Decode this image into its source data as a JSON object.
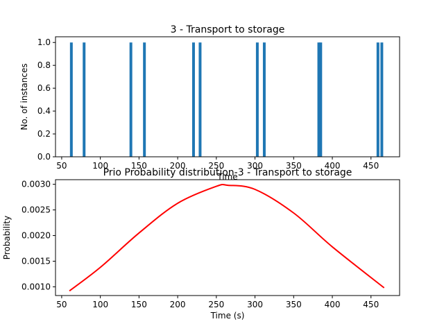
{
  "colors": {
    "bar": "#1f77b4",
    "line": "#ff0000",
    "axis": "#000000",
    "background": "#ffffff"
  },
  "chart_data": [
    {
      "type": "bar",
      "title": "3 - Transport to storage",
      "xlabel": "Time",
      "ylabel": "No. of instances",
      "xlim": [
        42,
        487
      ],
      "ylim": [
        0,
        1.05
      ],
      "x_ticks": [
        50,
        100,
        150,
        200,
        250,
        300,
        350,
        400,
        450
      ],
      "x_tick_labels": [
        "50",
        "100",
        "150",
        "200",
        "250",
        "300",
        "350",
        "400",
        "450"
      ],
      "y_ticks": [
        0,
        0.2,
        0.4,
        0.6,
        0.8,
        1.0
      ],
      "y_tick_labels": [
        "0.0",
        "0.2",
        "0.4",
        "0.6",
        "0.8",
        "1.0"
      ],
      "grid": false,
      "series": [
        {
          "x": [
            62.5,
            79,
            139.5,
            157,
            220.5,
            229,
            303,
            312,
            382.5,
            385,
            459,
            464
          ],
          "values": [
            1,
            1,
            1,
            1,
            1,
            1,
            1,
            1,
            1,
            1,
            1,
            1
          ]
        }
      ]
    },
    {
      "type": "line",
      "title": "Prio Probability distribution-3 - Transport to storage",
      "xlabel": "Time (s)",
      "ylabel": "Probability",
      "xlim": [
        42,
        487
      ],
      "ylim": [
        0.00083,
        0.00309
      ],
      "x_ticks": [
        50,
        100,
        150,
        200,
        250,
        300,
        350,
        400,
        450
      ],
      "x_tick_labels": [
        "50",
        "100",
        "150",
        "200",
        "250",
        "300",
        "350",
        "400",
        "450"
      ],
      "y_ticks": [
        0.001,
        0.0015,
        0.002,
        0.0025,
        0.003
      ],
      "y_tick_labels": [
        "0.0010",
        "0.0015",
        "0.0020",
        "0.0025",
        "0.0030"
      ],
      "grid": false,
      "series": [
        {
          "x": [
            60,
            100,
            150,
            200,
            250,
            265,
            300,
            350,
            400,
            467
          ],
          "values": [
            0.00092,
            0.00138,
            0.00205,
            0.00263,
            0.00296,
            0.00298,
            0.0029,
            0.00244,
            0.00178,
            0.00098
          ]
        }
      ]
    }
  ]
}
